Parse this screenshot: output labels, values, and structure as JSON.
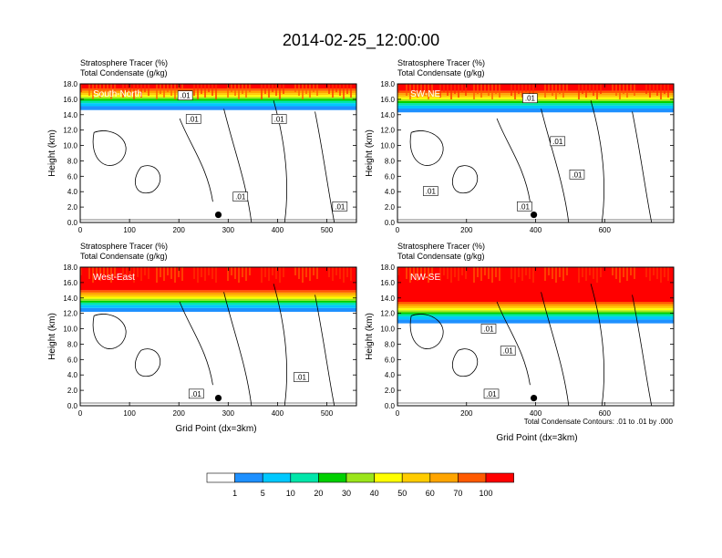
{
  "figure": {
    "title": "2014-02-25_12:00:00",
    "footnote": "Total Condensate Contours: .01 to .01 by .000",
    "x_axis_label": "Grid Point (dx=3km)"
  },
  "legend": {
    "colors": [
      "#ffffff",
      "#1e90ff",
      "#00c8ff",
      "#00e6aa",
      "#00d000",
      "#9be51b",
      "#ffff00",
      "#ffcc00",
      "#ffa500",
      "#ff5a00",
      "#ff0000"
    ],
    "labels": [
      "1",
      "5",
      "10",
      "20",
      "30",
      "40",
      "50",
      "60",
      "70",
      "100"
    ]
  },
  "chart_data": [
    {
      "type": "heatmap",
      "panel": "South-North",
      "title_lines": [
        "Stratosphere Tracer   (%)",
        "Total Condensate   (g/kg)"
      ],
      "xlabel": "",
      "ylabel": "Height (km)",
      "xlim": [
        0,
        560
      ],
      "ylim": [
        0,
        18
      ],
      "x_ticks": [
        "0",
        "100",
        "200",
        "300",
        "400",
        "500"
      ],
      "y_ticks": [
        "0.0",
        "2.0",
        "4.0",
        "6.0",
        "8.0",
        "10.0",
        "12.0",
        "14.0",
        "16.0",
        "18.0"
      ],
      "contour_labels": [
        ".01",
        ".01",
        ".01",
        ".01",
        ".01"
      ],
      "tracer_layer_bottom_km": 14.6
    },
    {
      "type": "heatmap",
      "panel": "SW-NE",
      "title_lines": [
        "Stratosphere Tracer   (%)",
        "Total Condensate   (g/kg)"
      ],
      "xlabel": "",
      "ylabel": "Height (km)",
      "xlim": [
        0,
        800
      ],
      "ylim": [
        0,
        18
      ],
      "x_ticks": [
        "0",
        "200",
        "400",
        "600"
      ],
      "y_ticks": [
        "0.0",
        "2.0",
        "4.0",
        "6.0",
        "8.0",
        "10.0",
        "12.0",
        "14.0",
        "16.0",
        "18.0"
      ],
      "contour_labels": [
        ".01",
        ".01",
        ".01",
        ".01",
        ".01"
      ],
      "tracer_layer_bottom_km": 14.3
    },
    {
      "type": "heatmap",
      "panel": "West-East",
      "title_lines": [
        "Stratosphere Tracer   (%)",
        "Total Condensate   (g/kg)"
      ],
      "xlabel": "Grid Point (dx=3km)",
      "ylabel": "Height (km)",
      "xlim": [
        0,
        560
      ],
      "ylim": [
        0,
        18
      ],
      "x_ticks": [
        "0",
        "100",
        "200",
        "300",
        "400",
        "500"
      ],
      "y_ticks": [
        "0.0",
        "2.0",
        "4.0",
        "6.0",
        "8.0",
        "10.0",
        "12.0",
        "14.0",
        "16.0",
        "18.0"
      ],
      "contour_labels": [
        ".01",
        ".01"
      ],
      "tracer_layer_bottom_km": 12.2
    },
    {
      "type": "heatmap",
      "panel": "NW-SE",
      "title_lines": [
        "Stratosphere Tracer   (%)",
        "Total Condensate   (g/kg)"
      ],
      "xlabel": "Grid Point (dx=3km)",
      "ylabel": "Height (km)",
      "xlim": [
        0,
        800
      ],
      "ylim": [
        0,
        18
      ],
      "x_ticks": [
        "0",
        "200",
        "400",
        "600"
      ],
      "y_ticks": [
        "0.0",
        "2.0",
        "4.0",
        "6.0",
        "8.0",
        "10.0",
        "12.0",
        "14.0",
        "16.0",
        "18.0"
      ],
      "contour_labels": [
        ".01",
        ".01",
        ".01"
      ],
      "tracer_layer_bottom_km": 10.7
    }
  ]
}
